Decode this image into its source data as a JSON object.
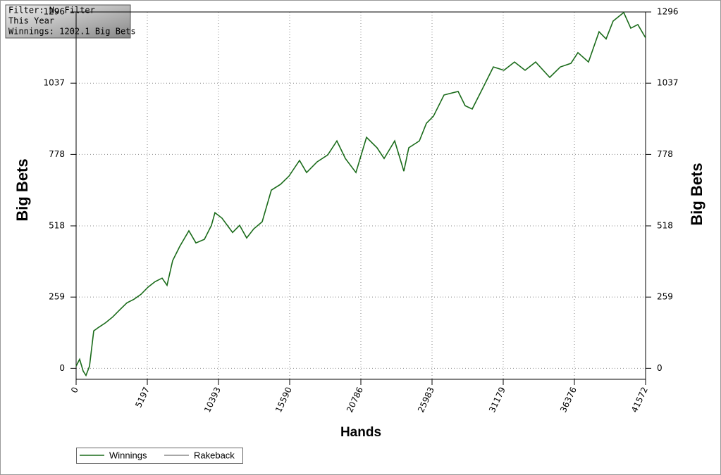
{
  "chart_data": {
    "type": "line",
    "annotations": [
      "Filter: No Filter",
      "This Year",
      "Winnings: 1202.1 Big Bets"
    ],
    "x_label": "Hands",
    "y_label": "Big Bets",
    "y2_label": "Big Bets",
    "x": [
      0,
      257,
      514,
      720,
      978,
      1286,
      1646,
      2161,
      2675,
      3190,
      3704,
      4219,
      4733,
      5248,
      5762,
      6277,
      6637,
      7049,
      7563,
      8232,
      8746,
      9364,
      9878,
      10136,
      10650,
      11422,
      11937,
      12451,
      12966,
      13583,
      14252,
      14921,
      15538,
      16309,
      16824,
      17596,
      18368,
      19037,
      19654,
      20426,
      21198,
      21969,
      22484,
      23256,
      23925,
      24285,
      25057,
      25571,
      26086,
      26857,
      27886,
      28401,
      28915,
      29687,
      30459,
      31230,
      32002,
      32774,
      33546,
      34575,
      35347,
      36118,
      36633,
      37404,
      38176,
      38690,
      39205,
      39977,
      40491,
      41006,
      41572
    ],
    "series": [
      {
        "name": "Winnings",
        "color": "#1a6b1a",
        "values": [
          8,
          33,
          -10,
          -26,
          8,
          136,
          149,
          166,
          187,
          213,
          238,
          251,
          269,
          295,
          315,
          328,
          302,
          392,
          443,
          500,
          456,
          469,
          520,
          566,
          546,
          494,
          520,
          474,
          507,
          533,
          648,
          669,
          699,
          756,
          712,
          751,
          776,
          827,
          763,
          712,
          840,
          802,
          763,
          827,
          717,
          802,
          827,
          891,
          917,
          994,
          1007,
          955,
          943,
          1019,
          1096,
          1084,
          1114,
          1084,
          1114,
          1058,
          1096,
          1109,
          1148,
          1114,
          1224,
          1198,
          1263,
          1294,
          1237,
          1250,
          1202
        ]
      },
      {
        "name": "Rakeback",
        "color": "#8a8a8a",
        "values": [
          null,
          null,
          null,
          null,
          null,
          null,
          null,
          null,
          null,
          null,
          null,
          null,
          null,
          null,
          null,
          null,
          null,
          null,
          null,
          null,
          null,
          null,
          null,
          null,
          null,
          null,
          null,
          null,
          null,
          null,
          null,
          null,
          null,
          null,
          null,
          null,
          null,
          null,
          null,
          null,
          null,
          null,
          null,
          null,
          null,
          null,
          null,
          null,
          null,
          null,
          null,
          null,
          null,
          null,
          null,
          null,
          null,
          null,
          null,
          null,
          null,
          null,
          null,
          null,
          null,
          null,
          null,
          null,
          null,
          null,
          null
        ]
      }
    ],
    "xlim": [
      0,
      41572
    ],
    "xticks": [
      0,
      5197,
      10393,
      15590,
      20786,
      25983,
      31179,
      36376,
      41572
    ],
    "ylim": [
      -40,
      1296
    ],
    "yticks": [
      0,
      259,
      518,
      778,
      1037,
      1296
    ],
    "y2lim": [
      -40,
      1296
    ],
    "y2ticks": [
      0,
      259,
      518,
      778,
      1037,
      1296
    ],
    "grid": true
  }
}
